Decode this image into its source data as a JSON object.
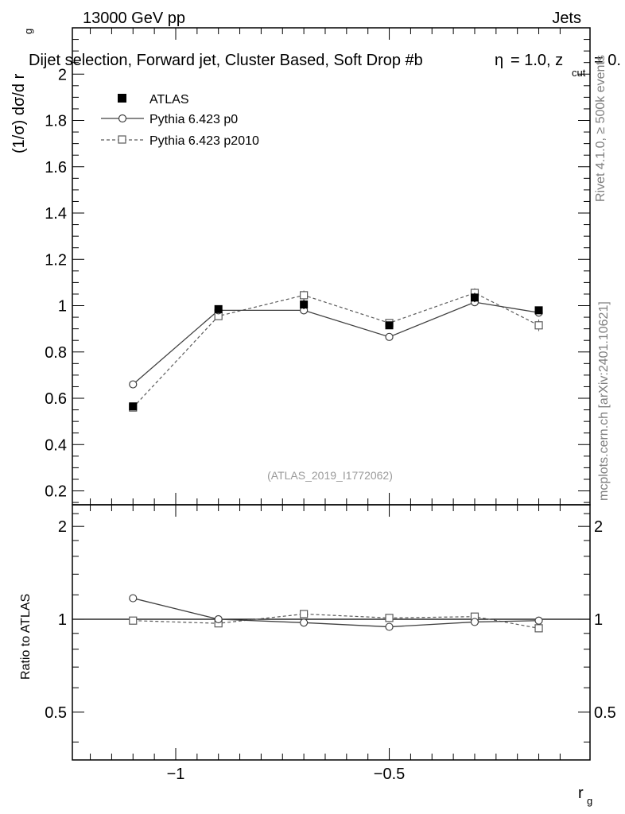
{
  "header": {
    "left": "13000 GeV pp",
    "right": "Jets",
    "title": "Dijet selection, Forward jet, Cluster Based, Soft Drop #b",
    "title_suffix": "= 1.0, z",
    "title_sub": "cut",
    "title_end": "= 0.",
    "beta_glyph": "η"
  },
  "side": {
    "rivet": "Rivet 4.1.0, ≥ 500k events",
    "mcplots": "mcplots.cern.ch [arXiv:2401.10621]"
  },
  "watermark": "(ATLAS_2019_I1772062)",
  "colors": {
    "data": "#000000",
    "p0": "#404040",
    "p2010": "#5a5a5a",
    "watermark": "#9a9a9a"
  },
  "legend": {
    "atlas": "ATLAS",
    "p0": "Pythia 6.423 p0",
    "p2010": "Pythia 6.423 p2010"
  },
  "chart_data": [
    {
      "type": "line",
      "panel": "main",
      "ylabel": "(1/σ) dσ/d r",
      "ylabel_sub": "g",
      "xlim": [
        -1.242,
        -0.03
      ],
      "ylim": [
        0.14,
        2.2
      ],
      "yticks": [
        0.2,
        0.4,
        0.6,
        0.8,
        1.0,
        1.2,
        1.4,
        1.6,
        1.8,
        2.0
      ],
      "ytick_labels": [
        "0.2",
        "0.4",
        "0.6",
        "0.8",
        "1",
        "1.2",
        "1.4",
        "1.6",
        "1.8",
        "2"
      ],
      "x": [
        -1.1,
        -0.9,
        -0.7,
        -0.5,
        -0.3,
        -0.15
      ],
      "series": [
        {
          "name": "ATLAS",
          "values": [
            0.565,
            0.985,
            1.005,
            0.915,
            1.035,
            0.98
          ],
          "errors": [
            0.012,
            0.012,
            0.02,
            0.015,
            0.02,
            0.012
          ]
        },
        {
          "name": "Pythia 6.423 p0",
          "values": [
            0.66,
            0.98,
            0.98,
            0.865,
            1.015,
            0.97
          ],
          "errors": [
            0.008,
            0.01,
            0.02,
            0.012,
            0.015,
            0.012
          ]
        },
        {
          "name": "Pythia 6.423 p2010",
          "values": [
            0.56,
            0.955,
            1.045,
            0.925,
            1.055,
            0.915
          ],
          "errors": [
            0.008,
            0.015,
            0.02,
            0.015,
            0.02,
            0.025
          ]
        }
      ]
    },
    {
      "type": "line",
      "panel": "ratio",
      "ylabel": "Ratio to ATLAS",
      "xlabel": "r",
      "xlabel_sub": "g",
      "xlim": [
        -1.242,
        -0.03
      ],
      "ylim": [
        0.35,
        2.35
      ],
      "xticks": [
        -1.0,
        -0.5
      ],
      "xtick_labels": [
        "−1",
        "−0.5"
      ],
      "yticks": [
        0.5,
        1.0,
        2.0
      ],
      "ytick_labels": [
        "0.5",
        "1",
        "2"
      ],
      "x": [
        -1.1,
        -0.9,
        -0.7,
        -0.5,
        -0.3,
        -0.15
      ],
      "series": [
        {
          "name": "Pythia 6.423 p0",
          "values": [
            1.17,
            1.0,
            0.975,
            0.945,
            0.98,
            0.99
          ]
        },
        {
          "name": "Pythia 6.423 p2010",
          "values": [
            0.99,
            0.97,
            1.04,
            1.01,
            1.02,
            0.935
          ]
        }
      ]
    }
  ]
}
